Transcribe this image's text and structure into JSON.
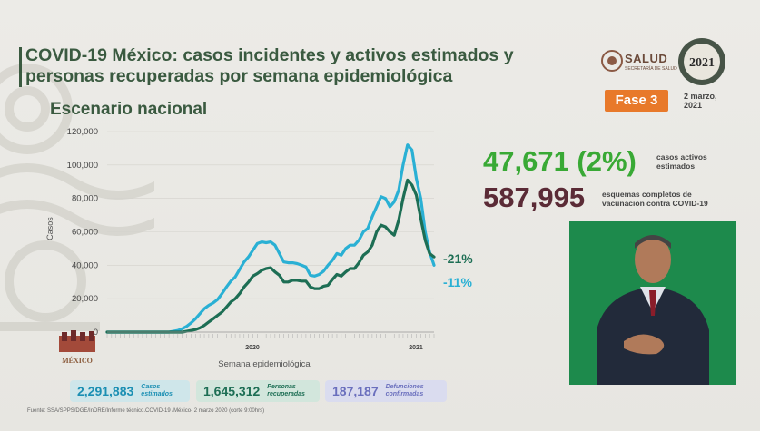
{
  "header": {
    "title_line1": "COVID-19 México: casos incidentes y activos estimados y",
    "title_line2": "personas recuperadas por semana epidemiológica",
    "subtitle": "Escenario nacional"
  },
  "branding": {
    "salud": "SALUD",
    "salud_sub": "SECRETARÍA DE SALUD",
    "year_badge": "2021",
    "mexico_logo": "MÉXICO",
    "fase": "Fase 3",
    "date_line1": "2 marzo,",
    "date_line2": "2021"
  },
  "kpis": {
    "active_value": "47,671 (2%)",
    "active_label_1": "casos activos",
    "active_label_2": "estimados",
    "vacc_value": "587,995",
    "vacc_label_1": "esquemas completos de",
    "vacc_label_2": "vacunación contra COVID-19"
  },
  "stats": [
    {
      "value": "2,291,883",
      "label_1": "Casos",
      "label_2": "estimados"
    },
    {
      "value": "1,645,312",
      "label_1": "Personas",
      "label_2": "recuperadas"
    },
    {
      "value": "187,187",
      "label_1": "Defunciones",
      "label_2": "confirmadas"
    }
  ],
  "source": "Fuente: SSA/SPPS/DGE/InDRE/Informe técnico.COVID-19 /México- 2 marzo 2020 (corte 9:00hrs)",
  "colors": {
    "title": "#3a5a40",
    "series_incident": "#2ab0d4",
    "series_active": "#1d6e54",
    "kpi_active": "#39a935",
    "kpi_vacc": "#5b2b36",
    "fase": "#e8792a"
  },
  "chart_data": {
    "type": "line",
    "ylabel": "Casos",
    "xlabel": "Semana epidemiológica",
    "ylim": [
      0,
      120000
    ],
    "yticks": [
      "0",
      "20,000",
      "40,000",
      "60,000",
      "80,000",
      "100,000",
      "120,000"
    ],
    "year_labels": [
      "2020",
      "2021"
    ],
    "series": [
      {
        "name": "",
        "change_label": "-11%",
        "values": [
          0,
          0,
          0,
          0,
          0,
          0,
          0,
          0,
          0,
          0,
          0,
          0,
          0,
          0,
          0,
          500,
          1000,
          2000,
          3500,
          5500,
          8000,
          11000,
          14000,
          16000,
          17500,
          19500,
          23000,
          27000,
          30500,
          33000,
          37500,
          42000,
          45000,
          49000,
          53000,
          54000,
          53500,
          54000,
          52000,
          47000,
          42000,
          41500,
          41500,
          41000,
          40000,
          39000,
          34000,
          33500,
          34500,
          36500,
          40000,
          43000,
          47000,
          46000,
          50000,
          52000,
          52000,
          55000,
          60000,
          62000,
          69000,
          75000,
          81000,
          80000,
          75000,
          78000,
          85000,
          100000,
          112000,
          109000,
          92000,
          80000,
          60000,
          48000,
          40000
        ]
      },
      {
        "name": "",
        "change_label": "-21%",
        "values": [
          0,
          0,
          0,
          0,
          0,
          0,
          0,
          0,
          0,
          0,
          0,
          0,
          0,
          0,
          0,
          0,
          0,
          0,
          500,
          1000,
          1500,
          2500,
          4000,
          6000,
          8000,
          10000,
          12000,
          15000,
          18000,
          20000,
          23000,
          27000,
          30000,
          33500,
          35000,
          37000,
          38000,
          38500,
          36000,
          34000,
          30000,
          30000,
          31000,
          31000,
          30500,
          30500,
          27000,
          26000,
          26000,
          27500,
          28000,
          31500,
          34500,
          33500,
          36000,
          38000,
          38000,
          41500,
          46000,
          48000,
          52000,
          60000,
          64000,
          63000,
          60000,
          58000,
          67000,
          80000,
          91000,
          88000,
          82000,
          68000,
          55000,
          47000,
          45000
        ]
      }
    ]
  }
}
